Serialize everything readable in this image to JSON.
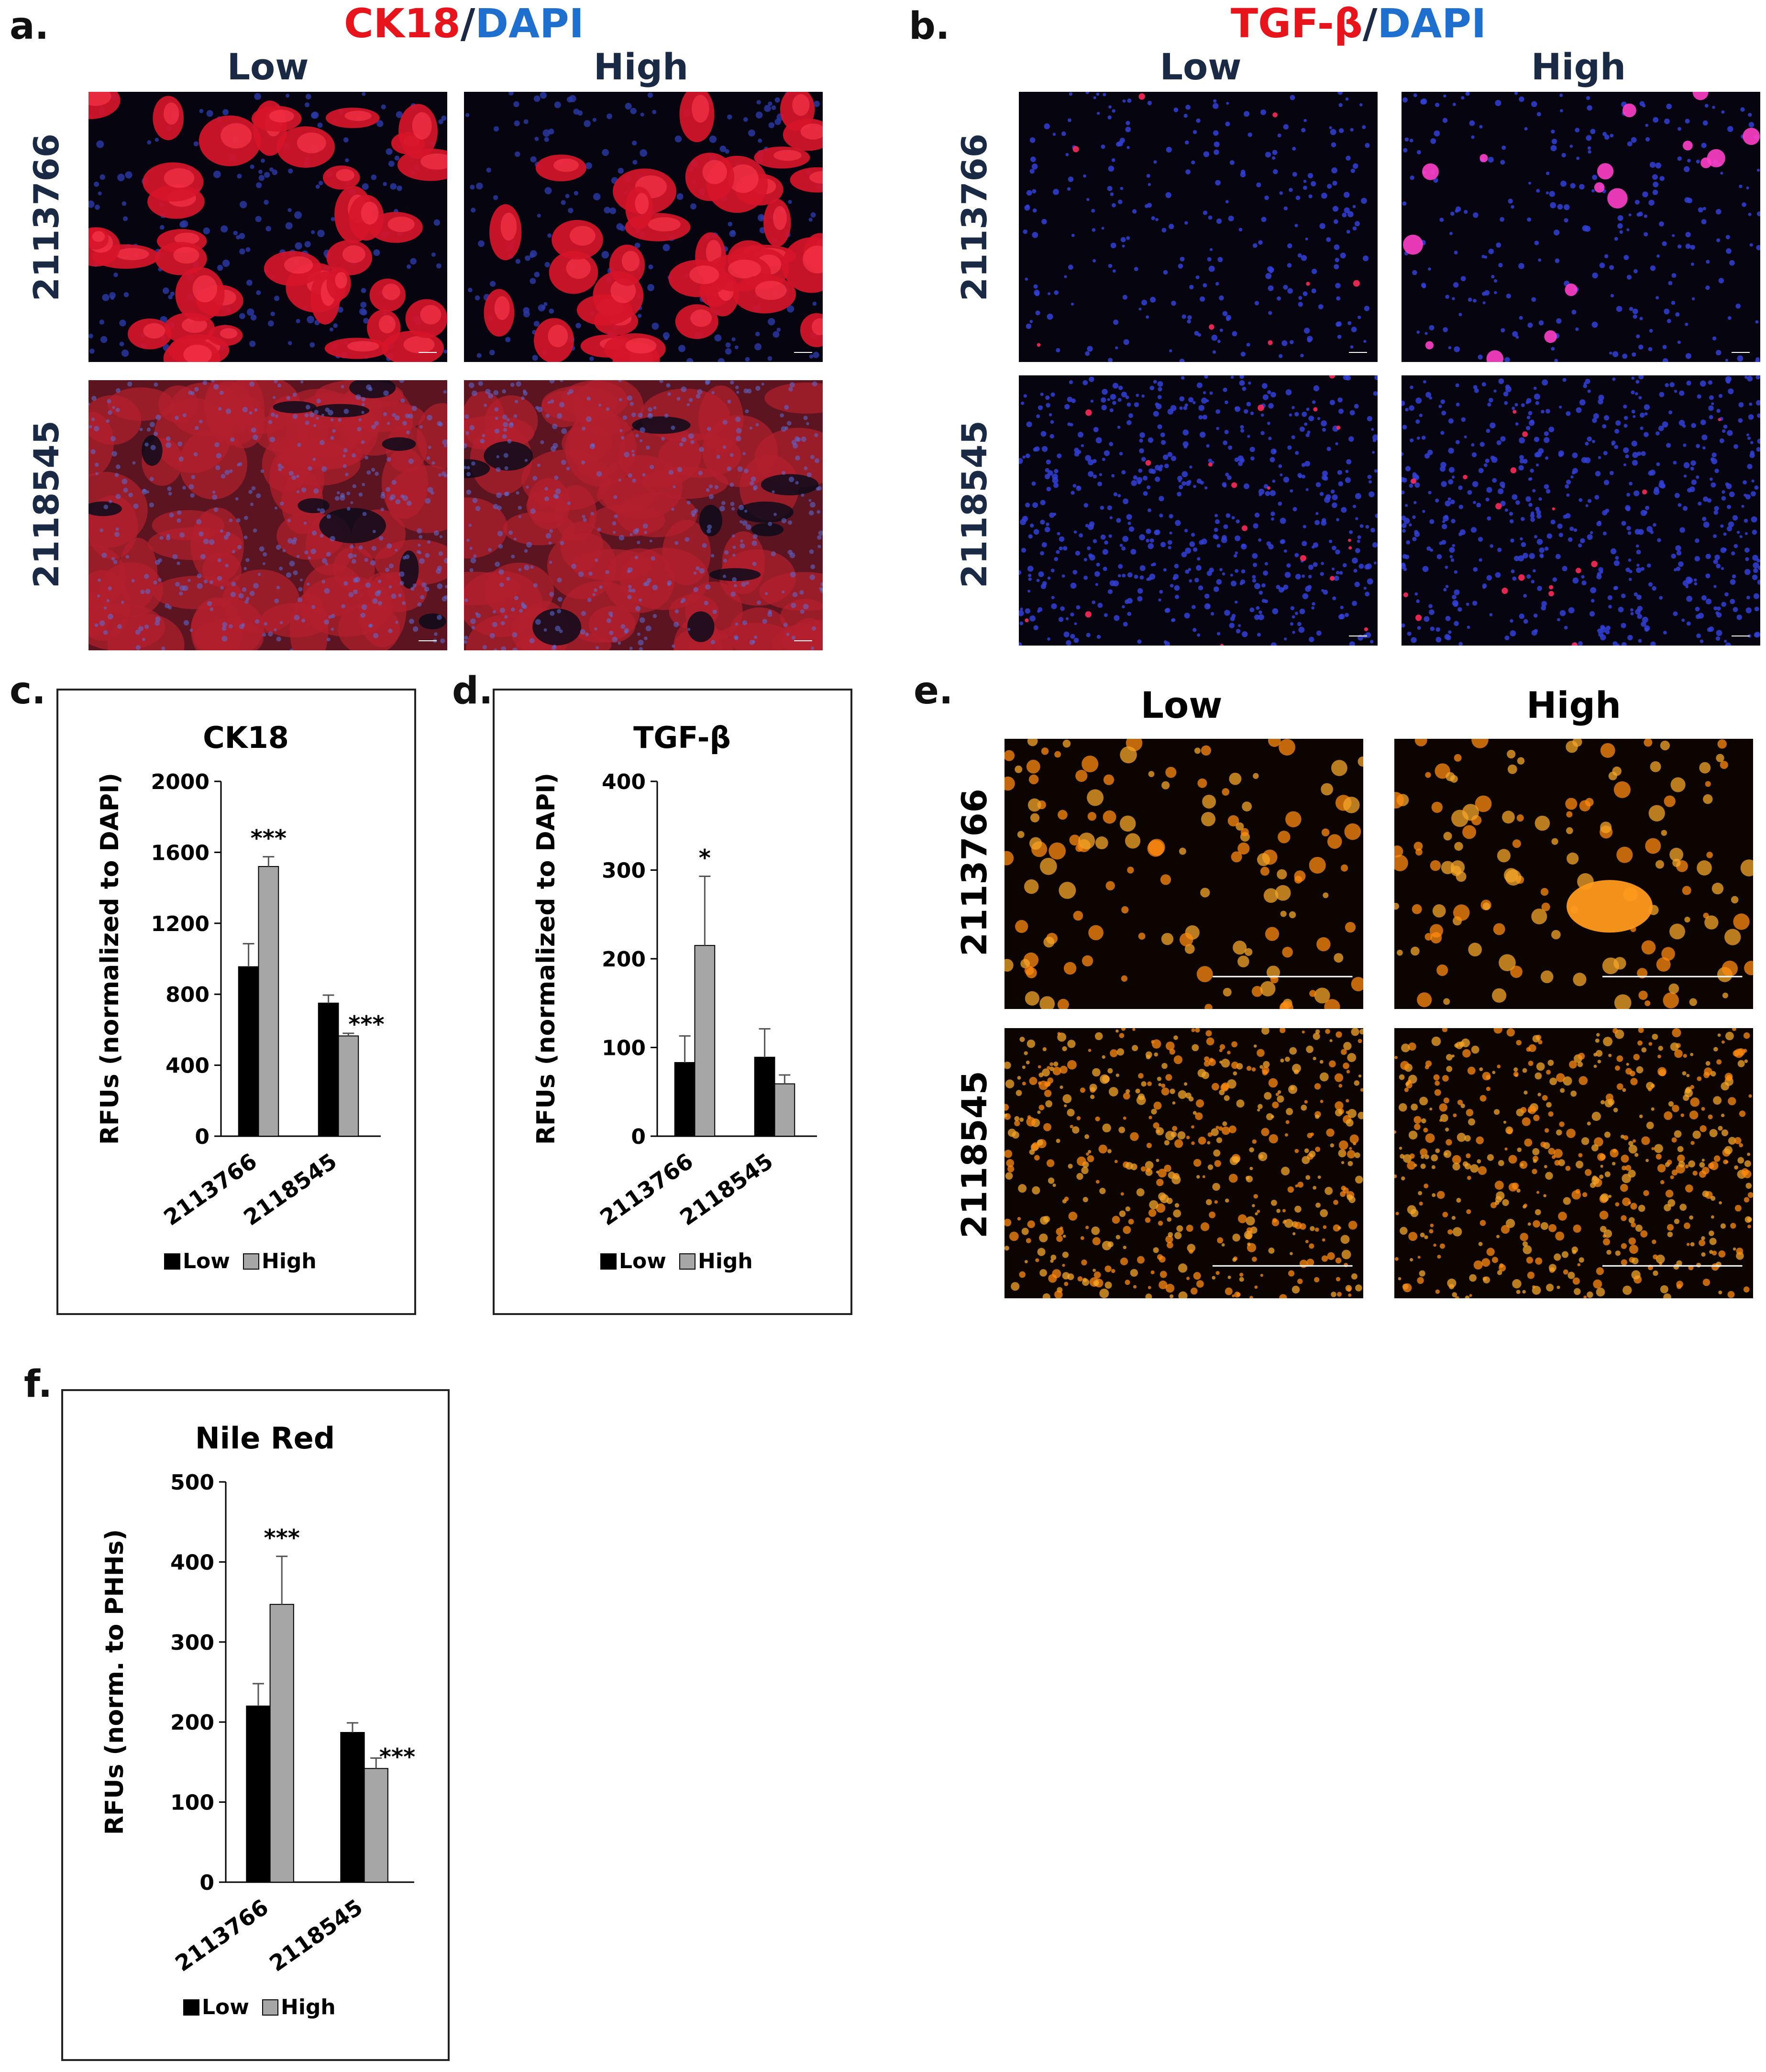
{
  "panel_a": {
    "label": "a.",
    "title_stain": "CK18",
    "title_sep": "/",
    "title_counter": "DAPI",
    "col_low": "Low",
    "col_high": "High",
    "row_1": "2113766",
    "row_2": "2118545"
  },
  "panel_b": {
    "label": "b.",
    "title_stain": "TGF-β",
    "title_sep": "/",
    "title_counter": "DAPI",
    "col_low": "Low",
    "col_high": "High",
    "row_1": "2113766",
    "row_2": "2118545"
  },
  "panel_e": {
    "label": "e.",
    "col_low": "Low",
    "col_high": "High",
    "row_1": "2113766",
    "row_2": "2118545"
  },
  "colors": {
    "low_bar": "#000000",
    "high_bar": "#a6a6a6",
    "stain_red": "#e8141c",
    "dapi_blue": "#1f6fcf"
  },
  "chart_data": [
    {
      "id": "c",
      "panel_label": "c.",
      "type": "bar",
      "title": "CK18",
      "ylabel": "RFUs (normalized to DAPI)",
      "categories": [
        "2113766",
        "2118545"
      ],
      "ylim": [
        0,
        2000
      ],
      "yticks": [
        "0",
        "400",
        "800",
        "1200",
        "1600",
        "2000"
      ],
      "series": [
        {
          "name": "Low",
          "values": [
            955,
            750
          ],
          "errors": [
            130,
            45
          ]
        },
        {
          "name": "High",
          "values": [
            1520,
            565
          ],
          "errors": [
            55,
            15
          ]
        }
      ],
      "annotations": [
        {
          "series": "High",
          "category": "2113766",
          "text": "***"
        },
        {
          "series": "High",
          "category": "2118545",
          "text": "***"
        }
      ],
      "legend": "bottom"
    },
    {
      "id": "d",
      "panel_label": "d.",
      "type": "bar",
      "title": "TGF-β",
      "ylabel": "RFUs (normalized to DAPI)",
      "categories": [
        "2113766",
        "2118545"
      ],
      "ylim": [
        0,
        400
      ],
      "yticks": [
        "0",
        "100",
        "200",
        "300",
        "400"
      ],
      "series": [
        {
          "name": "Low",
          "values": [
            83,
            89
          ],
          "errors": [
            30,
            32
          ]
        },
        {
          "name": "High",
          "values": [
            215,
            59
          ],
          "errors": [
            78,
            10
          ]
        }
      ],
      "annotations": [
        {
          "series": "High",
          "category": "2113766",
          "text": "*"
        }
      ],
      "legend": "bottom"
    },
    {
      "id": "f",
      "panel_label": "f.",
      "type": "bar",
      "title": "Nile Red",
      "ylabel": "RFUs (norm. to PHHs)",
      "categories": [
        "2113766",
        "2118545"
      ],
      "ylim": [
        0,
        500
      ],
      "yticks": [
        "0",
        "100",
        "200",
        "300",
        "400",
        "500"
      ],
      "series": [
        {
          "name": "Low",
          "values": [
            220,
            187
          ],
          "errors": [
            28,
            12
          ]
        },
        {
          "name": "High",
          "values": [
            347,
            142
          ],
          "errors": [
            60,
            13
          ]
        }
      ],
      "annotations": [
        {
          "series": "High",
          "category": "2113766",
          "text": "***"
        },
        {
          "series": "High",
          "category": "2118545",
          "text": "***"
        }
      ],
      "legend": "bottom"
    }
  ]
}
